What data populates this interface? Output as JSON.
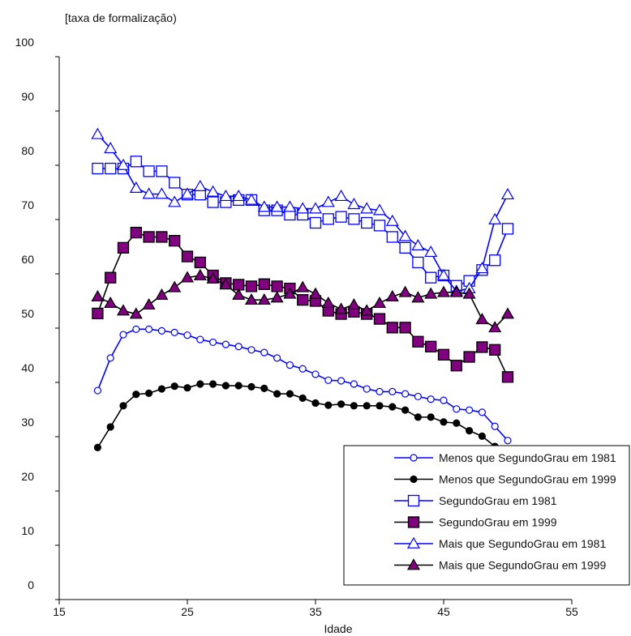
{
  "chart_data": {
    "type": "line",
    "title": "",
    "ylabel": "[taxa de formalização)",
    "xlabel": "Idade",
    "xlim": [
      15,
      55
    ],
    "ylim": [
      0,
      100
    ],
    "x_ticks": [
      15,
      25,
      35,
      45,
      55
    ],
    "y_ticks": [
      0,
      10,
      20,
      30,
      40,
      50,
      60,
      70,
      80,
      90,
      100
    ],
    "grid": false,
    "legend_position": "bottom-right",
    "x": [
      18,
      19,
      20,
      21,
      22,
      23,
      24,
      25,
      26,
      27,
      28,
      29,
      30,
      31,
      32,
      33,
      34,
      35,
      36,
      37,
      38,
      39,
      40,
      41,
      42,
      43,
      44,
      45,
      46,
      47,
      48,
      49,
      50
    ],
    "series": [
      {
        "name": "Menos que SegundoGrau em 1981",
        "color": "#0000ff",
        "marker": "circle-open",
        "line": true,
        "values": [
          38.5,
          44.5,
          48.8,
          49.8,
          49.8,
          49.5,
          49.2,
          48.7,
          47.9,
          47.4,
          47,
          46.6,
          46,
          45.5,
          44.5,
          43.2,
          42.5,
          41.5,
          40.4,
          40.3,
          39.7,
          38.8,
          38.3,
          38.3,
          37.9,
          37.4,
          36.9,
          36.7,
          35.1,
          34.9,
          34.5,
          31.9,
          29.3
        ]
      },
      {
        "name": "Menos que SegundoGrau em 1999",
        "color": "#000000",
        "marker": "circle-filled",
        "line": true,
        "values": [
          28,
          31.8,
          35.7,
          37.8,
          38,
          38.8,
          39.3,
          39,
          39.7,
          39.7,
          39.4,
          39.4,
          39.2,
          38.9,
          37.9,
          37.9,
          37.1,
          36.2,
          35.8,
          36,
          35.7,
          35.7,
          35.7,
          35.5,
          34.9,
          33.6,
          33.6,
          32.7,
          32.5,
          31.1,
          30.1,
          28.2,
          26.6
        ]
      },
      {
        "name": "SegundoGrau em 1981",
        "color": "#0000ff",
        "marker": "square-open",
        "line": true,
        "values": [
          79.4,
          79.4,
          79.4,
          80.7,
          78.9,
          78.9,
          76.8,
          74.6,
          74.6,
          73.2,
          73.2,
          73.6,
          73.6,
          71.7,
          71.7,
          70.9,
          70.9,
          69.4,
          70.1,
          70.5,
          70.1,
          69.4,
          68.9,
          66.8,
          64.8,
          62.1,
          59.3,
          59.7,
          57.8,
          58.7,
          60.7,
          62.5,
          68.3
        ]
      },
      {
        "name": "SegundoGrau em 1999",
        "color": "#000000",
        "fill": "#800080",
        "marker": "square-filled",
        "line": true,
        "values": [
          52.7,
          59.3,
          64.8,
          67.6,
          66.8,
          66.8,
          66.1,
          63.2,
          62.1,
          59.7,
          58.3,
          58,
          57.7,
          58.1,
          57.7,
          57.3,
          55.2,
          55,
          53.2,
          52.6,
          53,
          52.6,
          51.7,
          50.1,
          50.1,
          47.5,
          46.6,
          45.1,
          43.1,
          44.7,
          46.5,
          46,
          41
        ]
      },
      {
        "name": "Mais que SegundoGrau em 1981",
        "color": "#0000ff",
        "marker": "triangle-open",
        "line": true,
        "values": [
          85.7,
          83.1,
          80,
          75.8,
          74.7,
          74.7,
          73.2,
          74.7,
          76.1,
          75.1,
          74.3,
          74.3,
          73.6,
          72.3,
          72.3,
          72.3,
          72,
          72,
          73.2,
          74.3,
          72.8,
          72,
          71.7,
          69.7,
          66.9,
          65.2,
          64,
          59.7,
          56.8,
          57.3,
          61,
          70,
          74.6
        ]
      },
      {
        "name": "Mais que SegundoGrau em 1999",
        "color": "#000000",
        "fill": "#800080",
        "marker": "triangle-filled",
        "line": true,
        "values": [
          55.8,
          54.6,
          53.2,
          52.6,
          54.3,
          56.1,
          57.5,
          59.3,
          59.7,
          59.1,
          58,
          56.1,
          55.2,
          55.2,
          55.6,
          56.3,
          57.5,
          56.3,
          54.6,
          53.5,
          54.3,
          53.2,
          54.6,
          55.8,
          56.6,
          55.6,
          56.3,
          56.6,
          56.6,
          56.3,
          51.6,
          50.1,
          52.6
        ]
      }
    ]
  }
}
